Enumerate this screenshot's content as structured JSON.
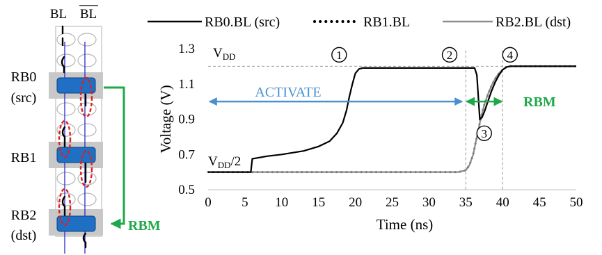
{
  "schematic": {
    "bl_label": "BL",
    "blbar_label": "BL",
    "rows": [
      {
        "name": "RB0",
        "role": "(src)"
      },
      {
        "name": "RB1",
        "role": ""
      },
      {
        "name": "RB2",
        "role": "(dst)"
      }
    ],
    "rbm_label": "RBM",
    "colors": {
      "bitline": "#2a2ad0",
      "cell": "#1f6fc4",
      "dashed": "#e02020",
      "arrow": "#1fa84a",
      "band": "#c8c8c8"
    }
  },
  "chart_data": {
    "type": "line",
    "xlabel": "Time (ns)",
    "ylabel": "Voltage (V)",
    "xlim": [
      0,
      50
    ],
    "ylim": [
      0.5,
      1.3
    ],
    "xticks": [
      0,
      5,
      10,
      15,
      20,
      25,
      30,
      35,
      40,
      45,
      50
    ],
    "yticks": [
      0.5,
      0.7,
      0.9,
      1.1,
      1.3
    ],
    "ytick_labels": [
      "0.5",
      "0.7",
      "0.9",
      "1.1",
      "1.3"
    ],
    "legend_position": "top",
    "series": [
      {
        "name": "RB0.BL (src)",
        "style": "solid",
        "color": "#000000",
        "x": [
          0,
          5.8,
          6.0,
          8.0,
          10.0,
          13.0,
          15.0,
          16.5,
          17.5,
          18.3,
          18.8,
          19.2,
          19.6,
          20.0,
          20.5,
          21.0,
          25.0,
          30.0,
          35.0,
          36.2,
          36.5,
          36.9,
          37.2,
          37.6,
          38.0,
          38.5,
          39.0,
          39.5,
          40.0,
          40.5,
          41.0,
          45.0,
          50.0
        ],
        "y": [
          0.6,
          0.6,
          0.675,
          0.69,
          0.7,
          0.72,
          0.745,
          0.775,
          0.82,
          0.88,
          0.95,
          1.03,
          1.1,
          1.16,
          1.185,
          1.19,
          1.19,
          1.19,
          1.19,
          1.19,
          1.15,
          0.9,
          0.91,
          0.95,
          1.0,
          1.06,
          1.11,
          1.15,
          1.18,
          1.195,
          1.2,
          1.2,
          1.2
        ]
      },
      {
        "name": "RB1.BL",
        "style": "dotted",
        "color": "#808080",
        "x": [
          0,
          6.0,
          10.0,
          15.0,
          20.0,
          25.0,
          30.0,
          34.0,
          35.0,
          35.5,
          36.0,
          36.5,
          37.0,
          37.5,
          38.0,
          38.5,
          39.0,
          39.5,
          40.0,
          40.5,
          41.0,
          45.0,
          50.0
        ],
        "y": [
          0.6,
          0.6,
          0.6,
          0.6,
          0.6,
          0.6,
          0.6,
          0.6,
          0.61,
          0.64,
          0.7,
          0.8,
          0.9,
          0.98,
          1.04,
          1.09,
          1.13,
          1.16,
          1.18,
          1.195,
          1.2,
          1.2,
          1.2
        ]
      },
      {
        "name": "RB2.BL (dst)",
        "style": "solid",
        "color": "#8c8c8c",
        "x": [
          0,
          6.0,
          10.0,
          15.0,
          20.0,
          25.0,
          30.0,
          34.0,
          35.0,
          35.5,
          36.0,
          36.5,
          37.0,
          37.5,
          38.0,
          38.5,
          39.0,
          39.5,
          40.0,
          40.5,
          41.0,
          45.0,
          50.0
        ],
        "y": [
          0.6,
          0.6,
          0.6,
          0.6,
          0.6,
          0.6,
          0.6,
          0.6,
          0.61,
          0.64,
          0.7,
          0.8,
          0.9,
          0.98,
          1.04,
          1.09,
          1.13,
          1.16,
          1.18,
          1.195,
          1.2,
          1.2,
          1.2
        ]
      }
    ],
    "reference_lines": [
      {
        "axis": "y",
        "value": 1.2,
        "label": "VDD"
      },
      {
        "axis": "x",
        "value": 35
      },
      {
        "axis": "x",
        "value": 40
      }
    ],
    "annotations": {
      "vdd": {
        "main": "V",
        "sub": "DD"
      },
      "vdd_half": {
        "main": "V",
        "sub": "DD",
        "suffix": "/2"
      },
      "activate": {
        "text": "ACTIVATE",
        "from": 0,
        "to": 34.5,
        "y": 1.0,
        "color": "#4a90d0"
      },
      "rbm": {
        "text": "RBM",
        "from": 35,
        "to": 40,
        "y": 1.0,
        "color": "#1fa84a"
      },
      "markers": [
        {
          "text": "1",
          "x": 17.8,
          "y": 1.265
        },
        {
          "text": "2",
          "x": 32.8,
          "y": 1.265
        },
        {
          "text": "3",
          "x": 37.5,
          "y": 0.82
        },
        {
          "text": "4",
          "x": 41.0,
          "y": 1.265
        }
      ]
    }
  }
}
